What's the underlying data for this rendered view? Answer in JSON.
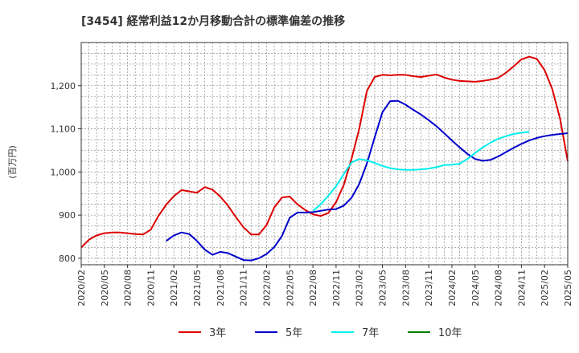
{
  "chart_data": {
    "type": "line",
    "title": "[3454]  経常利益12か月移動合計の標準偏差の推移",
    "ylabel": "(百万円)",
    "xlabel": "",
    "ylim": [
      785,
      1300
    ],
    "y_ticks": [
      800,
      900,
      1000,
      1100,
      1200
    ],
    "y_tick_labels": [
      "800",
      "900",
      "1,000",
      "1,100",
      "1,200"
    ],
    "x_ticks": [
      "2020/02",
      "2020/05",
      "2020/08",
      "2020/11",
      "2021/02",
      "2021/05",
      "2021/08",
      "2021/11",
      "2022/02",
      "2022/05",
      "2022/08",
      "2022/11",
      "2023/02",
      "2023/05",
      "2023/08",
      "2023/11",
      "2024/02",
      "2024/05",
      "2024/08",
      "2024/11",
      "2025/02",
      "2025/05"
    ],
    "x_start": "2020/02",
    "x_end": "2025/05",
    "grid": true,
    "legend_position": "bottom",
    "series": [
      {
        "name": "3年",
        "color": "#dd0000",
        "start": "2020/02",
        "values": [
          825,
          843,
          853,
          858,
          860,
          860,
          858,
          856,
          855,
          866,
          898,
          924,
          944,
          958,
          955,
          952,
          965,
          959,
          943,
          922,
          896,
          872,
          855,
          855,
          877,
          918,
          941,
          943,
          925,
          912,
          902,
          898,
          905,
          930,
          970,
          1030,
          1100,
          1188,
          1220,
          1225,
          1224,
          1225,
          1225,
          1222,
          1220,
          1223,
          1226,
          1219,
          1214,
          1211,
          1210,
          1209,
          1211,
          1214,
          1218,
          1230,
          1245,
          1261,
          1267,
          1262,
          1236,
          1192,
          1124,
          1025
        ]
      },
      {
        "name": "5年",
        "color": "#0000cc",
        "start": "2021/01",
        "values": [
          840,
          853,
          860,
          856,
          840,
          820,
          808,
          815,
          812,
          804,
          796,
          795,
          800,
          810,
          826,
          852,
          894,
          906,
          906,
          907,
          910,
          913,
          914,
          922,
          940,
          972,
          1020,
          1080,
          1138,
          1164,
          1165,
          1156,
          1144,
          1133,
          1120,
          1106,
          1090,
          1073,
          1057,
          1042,
          1030,
          1026,
          1028,
          1036,
          1046,
          1056,
          1065,
          1073,
          1079,
          1083,
          1086,
          1088,
          1090
        ]
      },
      {
        "name": "7年",
        "color": "#00eeee",
        "start": "2022/08",
        "values": [
          910,
          925,
          945,
          967,
          995,
          1022,
          1030,
          1027,
          1021,
          1014,
          1009,
          1006,
          1005,
          1005,
          1006,
          1008,
          1011,
          1016,
          1017,
          1019,
          1030,
          1044,
          1057,
          1068,
          1077,
          1083,
          1088,
          1091,
          1093
        ]
      },
      {
        "name": "10年",
        "color": "#008000",
        "start": "2025/02",
        "values": []
      }
    ]
  }
}
